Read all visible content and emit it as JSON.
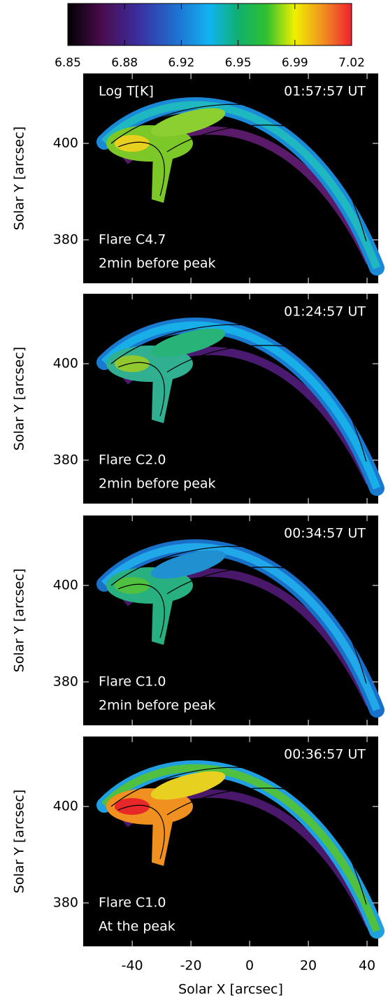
{
  "chart_data": [
    {
      "type": "colorbar",
      "xlim": [
        6.85,
        7.02
      ],
      "xticks": [
        6.85,
        {
          "value": 6.884,
          "label": "6.88"
        },
        {
          "value": 6.918,
          "label": "6.92"
        },
        {
          "value": 6.952,
          "label": "6.95"
        },
        {
          "value": 6.986,
          "label": "6.99"
        },
        7.02
      ]
    },
    {
      "type": "heatmap",
      "annotations": [
        "Log T[K]",
        "01:57:57 UT",
        "Flare C4.7",
        "2min before peak"
      ],
      "ylabel": "Solar Y [arcsec]",
      "xlim": [
        -56.7,
        43.8
      ],
      "ylim": [
        371,
        414.5
      ],
      "xticks": [
        -40,
        -20,
        0,
        20,
        40
      ],
      "yticks": [
        380,
        400
      ]
    },
    {
      "type": "heatmap",
      "annotations": [
        "01:24:57 UT",
        "Flare C2.0",
        "2min before peak"
      ],
      "ylabel": "Solar Y [arcsec]",
      "xlim": [
        -56.7,
        43.8
      ],
      "ylim": [
        371,
        414.5
      ],
      "xticks": [
        -40,
        -20,
        0,
        20,
        40
      ],
      "yticks": [
        380,
        400
      ]
    },
    {
      "type": "heatmap",
      "annotations": [
        "00:34:57 UT",
        "Flare C1.0",
        "2min before peak"
      ],
      "ylabel": "Solar Y [arcsec]",
      "xlim": [
        -56.7,
        43.8
      ],
      "ylim": [
        371,
        414.5
      ],
      "xticks": [
        -40,
        -20,
        0,
        20,
        40
      ],
      "yticks": [
        380,
        400
      ]
    },
    {
      "type": "heatmap",
      "annotations": [
        "00:36:57 UT",
        "Flare C1.0",
        "At the peak"
      ],
      "ylabel": "Solar Y [arcsec]",
      "xlabel": "Solar X [arcsec]",
      "xlim": [
        -56.7,
        43.8
      ],
      "ylim": [
        371,
        414.5
      ],
      "xticks": [
        -40,
        -20,
        0,
        20,
        40
      ],
      "yticks": [
        380,
        400
      ]
    }
  ]
}
